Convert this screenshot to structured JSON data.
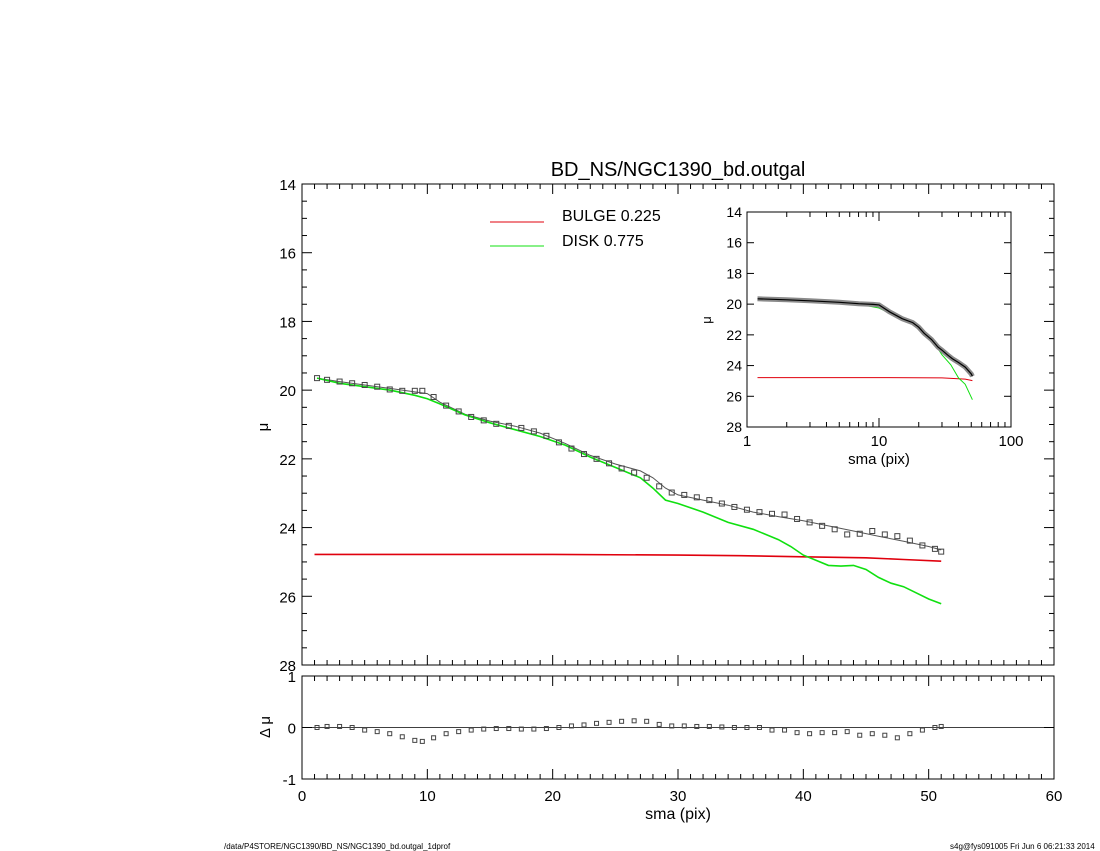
{
  "colors": {
    "bulge": "#e0000d",
    "disk": "#10e010",
    "data": "#000000",
    "model": "#555555"
  },
  "footer": {
    "left": "/data/P4STORE/NGC1390/BD_NS/NGC1390_bd.outgal_1dprof",
    "right": "s4g@fys091005  Fri Jun  6 06:21:33 2014"
  },
  "chart_data": [
    {
      "id": "main",
      "type": "line",
      "title": "BD_NS/NGC1390_bd.outgal",
      "xlabel": "",
      "ylabel": "μ",
      "xlim": [
        0,
        60
      ],
      "ylim": [
        14,
        28
      ],
      "y_inverted": true,
      "yticks": [
        14,
        16,
        18,
        20,
        22,
        24,
        26,
        28
      ],
      "legend": [
        {
          "name": "BULGE  0.225",
          "color": "#e0000d"
        },
        {
          "name": "DISK  0.775",
          "color": "#10e010"
        }
      ],
      "legend_position": "top-center",
      "series": [
        {
          "name": "data",
          "kind": "square-markers",
          "color": "#000000",
          "x": [
            1.2,
            2,
            3,
            4,
            5,
            6,
            7,
            8,
            9,
            9.6,
            10.5,
            11.5,
            12.5,
            13.5,
            14.5,
            15.5,
            16.5,
            17.5,
            18.5,
            19.5,
            20.5,
            21.5,
            22.5,
            23.5,
            24.5,
            25.5,
            26.5,
            27.5,
            28.5,
            29.5,
            30.5,
            31.5,
            32.5,
            33.5,
            34.5,
            35.5,
            36.5,
            37.5,
            38.5,
            39.5,
            40.5,
            41.5,
            42.5,
            43.5,
            44.5,
            45.5,
            46.5,
            47.5,
            48.5,
            49.5,
            50.5,
            51.0
          ],
          "y": [
            19.65,
            19.7,
            19.75,
            19.8,
            19.85,
            19.9,
            19.98,
            20.02,
            20.02,
            20.02,
            20.2,
            20.45,
            20.62,
            20.78,
            20.88,
            20.98,
            21.04,
            21.1,
            21.2,
            21.33,
            21.52,
            21.7,
            21.86,
            22.0,
            22.13,
            22.28,
            22.4,
            22.55,
            22.8,
            22.98,
            23.05,
            23.12,
            23.2,
            23.3,
            23.4,
            23.48,
            23.55,
            23.6,
            23.62,
            23.75,
            23.85,
            23.95,
            24.05,
            24.2,
            24.18,
            24.1,
            24.2,
            24.25,
            24.38,
            24.52,
            24.62,
            24.7
          ]
        },
        {
          "name": "model",
          "kind": "line",
          "color": "#555555",
          "x": [
            1.2,
            3,
            5,
            7,
            8,
            9,
            10,
            11,
            13,
            15,
            17,
            19,
            21,
            23,
            25,
            27,
            28,
            29,
            30,
            32,
            34,
            36,
            38,
            40,
            42,
            44,
            46,
            48,
            50,
            51
          ],
          "y": [
            19.65,
            19.75,
            19.85,
            19.95,
            20.0,
            20.05,
            20.1,
            20.35,
            20.7,
            20.9,
            21.05,
            21.25,
            21.55,
            21.9,
            22.15,
            22.35,
            22.55,
            22.85,
            23.05,
            23.2,
            23.35,
            23.55,
            23.68,
            23.8,
            23.95,
            24.1,
            24.25,
            24.4,
            24.55,
            24.65
          ]
        },
        {
          "name": "bulge",
          "kind": "line",
          "color": "#e0000d",
          "x": [
            1,
            10,
            20,
            30,
            35,
            40,
            45,
            48,
            51
          ],
          "y": [
            24.78,
            24.78,
            24.78,
            24.8,
            24.82,
            24.85,
            24.88,
            24.93,
            24.98
          ]
        },
        {
          "name": "disk",
          "kind": "line",
          "color": "#10e010",
          "x": [
            1.2,
            3,
            5,
            7,
            9,
            10,
            11,
            13,
            15,
            17,
            19,
            21,
            23,
            25,
            27,
            28,
            29,
            30,
            32,
            34,
            36,
            38,
            39,
            40,
            41,
            42,
            43,
            44,
            45,
            46,
            47,
            48,
            49,
            50,
            51
          ],
          "y": [
            19.65,
            19.8,
            19.9,
            20.0,
            20.15,
            20.25,
            20.4,
            20.72,
            20.95,
            21.15,
            21.35,
            21.6,
            21.95,
            22.25,
            22.55,
            22.85,
            23.2,
            23.3,
            23.55,
            23.85,
            24.05,
            24.35,
            24.55,
            24.8,
            24.95,
            25.1,
            25.12,
            25.1,
            25.22,
            25.45,
            25.62,
            25.72,
            25.9,
            26.08,
            26.22
          ]
        }
      ]
    },
    {
      "id": "residual",
      "type": "scatter",
      "xlabel": "sma (pix)",
      "ylabel": "Δ μ",
      "xlim": [
        0,
        60
      ],
      "ylim": [
        -1,
        1
      ],
      "xticks": [
        0,
        10,
        20,
        30,
        40,
        50,
        60
      ],
      "yticks": [
        -1,
        0,
        1
      ],
      "zero_line": true,
      "series": [
        {
          "name": "residual",
          "kind": "square-markers",
          "color": "#000000",
          "x": [
            1.2,
            2,
            3,
            4,
            5,
            6,
            7,
            8,
            9,
            9.6,
            10.5,
            11.5,
            12.5,
            13.5,
            14.5,
            15.5,
            16.5,
            17.5,
            18.5,
            19.5,
            20.5,
            21.5,
            22.5,
            23.5,
            24.5,
            25.5,
            26.5,
            27.5,
            28.5,
            29.5,
            30.5,
            31.5,
            32.5,
            33.5,
            34.5,
            35.5,
            36.5,
            37.5,
            38.5,
            39.5,
            40.5,
            41.5,
            42.5,
            43.5,
            44.5,
            45.5,
            46.5,
            47.5,
            48.5,
            49.5,
            50.5,
            51.0
          ],
          "y": [
            0.0,
            0.02,
            0.02,
            0.0,
            -0.05,
            -0.08,
            -0.12,
            -0.18,
            -0.25,
            -0.27,
            -0.2,
            -0.12,
            -0.08,
            -0.05,
            -0.03,
            -0.02,
            -0.02,
            -0.03,
            -0.03,
            -0.02,
            0.0,
            0.03,
            0.05,
            0.08,
            0.1,
            0.12,
            0.13,
            0.12,
            0.06,
            0.03,
            0.03,
            0.02,
            0.02,
            0.01,
            0.0,
            0.0,
            0.0,
            -0.05,
            -0.05,
            -0.1,
            -0.12,
            -0.1,
            -0.1,
            -0.08,
            -0.15,
            -0.12,
            -0.15,
            -0.2,
            -0.12,
            -0.05,
            0.0,
            0.02
          ]
        }
      ]
    },
    {
      "id": "inset",
      "type": "line",
      "xlabel": "sma (pix)",
      "ylabel": "μ",
      "xscale": "log",
      "xlim": [
        1,
        100
      ],
      "ylim": [
        14,
        28
      ],
      "y_inverted": true,
      "xticks": [
        1,
        10,
        100
      ],
      "yticks": [
        14,
        16,
        18,
        20,
        22,
        24,
        26,
        28
      ],
      "series": [
        {
          "name": "data",
          "kind": "thick-line",
          "color": "#000000",
          "x": [
            1.2,
            2,
            3,
            5,
            7,
            9,
            10,
            12,
            15,
            18,
            20,
            22,
            25,
            28,
            30,
            33,
            36,
            40,
            45,
            50,
            51
          ],
          "y": [
            19.65,
            19.72,
            19.78,
            19.88,
            19.97,
            20.02,
            20.05,
            20.5,
            20.95,
            21.2,
            21.5,
            21.9,
            22.3,
            22.8,
            23.0,
            23.3,
            23.55,
            23.8,
            24.1,
            24.55,
            24.7
          ]
        },
        {
          "name": "bulge",
          "kind": "line",
          "color": "#e0000d",
          "x": [
            1.2,
            10,
            30,
            45,
            51
          ],
          "y": [
            24.78,
            24.78,
            24.8,
            24.88,
            24.98
          ]
        },
        {
          "name": "disk",
          "kind": "line",
          "color": "#10e010",
          "x": [
            1.2,
            3,
            5,
            7,
            10,
            13,
            17,
            20,
            25,
            30,
            35,
            40,
            45,
            51
          ],
          "y": [
            19.65,
            19.8,
            19.9,
            20.0,
            20.25,
            20.72,
            21.15,
            21.5,
            22.25,
            23.3,
            23.95,
            24.8,
            25.22,
            26.22
          ]
        }
      ]
    }
  ],
  "tick_labels": {
    "main_y": [
      "14",
      "16",
      "18",
      "20",
      "22",
      "24",
      "26",
      "28"
    ],
    "res_y": [
      "1",
      "0",
      "-1"
    ],
    "res_x": [
      "0",
      "10",
      "20",
      "30",
      "40",
      "50",
      "60"
    ],
    "inset_y": [
      "14",
      "16",
      "18",
      "20",
      "22",
      "24",
      "26",
      "28"
    ],
    "inset_x": [
      "1",
      "10",
      "100"
    ]
  }
}
